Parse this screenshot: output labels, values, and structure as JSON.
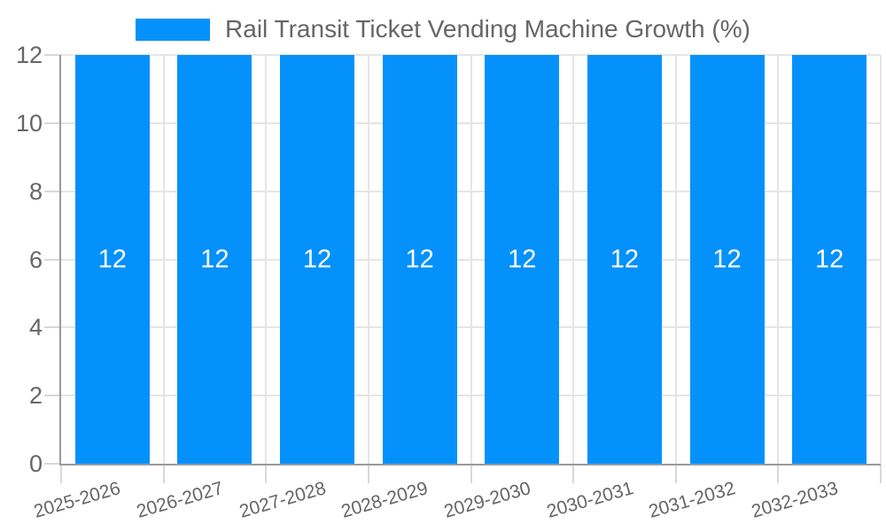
{
  "chart_data": {
    "type": "bar",
    "title": "Rail Transit Ticket Vending Machine Growth (%)",
    "legend": {
      "position": "top-center",
      "entries": [
        {
          "label": "Rail Transit Ticket Vending Machine Growth (%)",
          "color": "#0591fb"
        }
      ]
    },
    "categories": [
      "2025-2026",
      "2026-2027",
      "2027-2028",
      "2028-2029",
      "2029-2030",
      "2030-2031",
      "2031-2032",
      "2032-2033"
    ],
    "series": [
      {
        "name": "Rail Transit Ticket Vending Machine Growth (%)",
        "values": [
          12,
          12,
          12,
          12,
          12,
          12,
          12,
          12
        ]
      }
    ],
    "value_labels": [
      "12",
      "12",
      "12",
      "12",
      "12",
      "12",
      "12",
      "12"
    ],
    "xlabel": "",
    "ylabel": "",
    "ylim": [
      0,
      12
    ],
    "yticks": [
      0,
      2,
      4,
      6,
      8,
      10,
      12
    ],
    "ytick_labels": [
      "0",
      "2",
      "4",
      "6",
      "8",
      "10",
      "12"
    ],
    "grid": "on",
    "colors": {
      "bar": "#0591fb",
      "gridline": "#e5e5e5",
      "tick": "#d8d8d8",
      "axis_border": "#9a9a9a",
      "text": "#666666",
      "value_label": "#ffffff",
      "background": "#ffffff"
    }
  }
}
